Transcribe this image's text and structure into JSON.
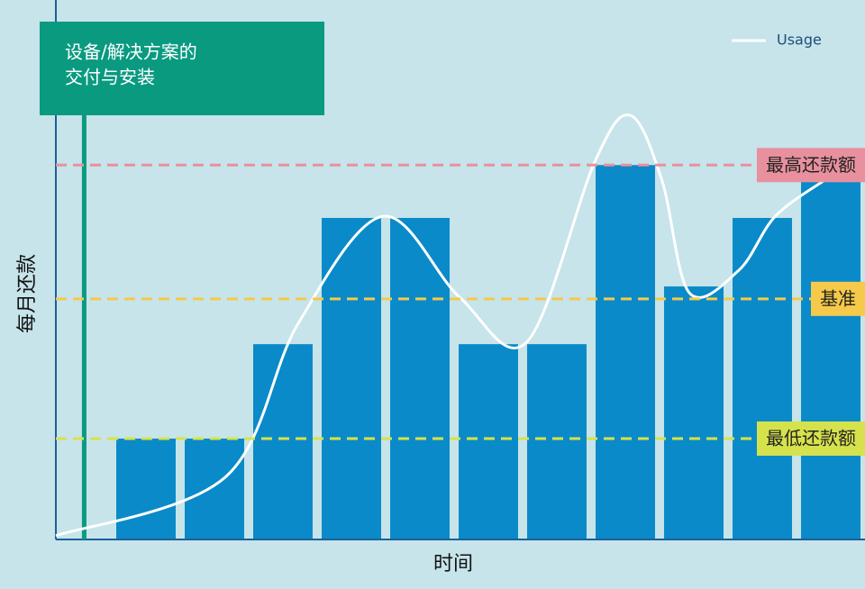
{
  "chart_data": {
    "type": "bar",
    "y_label": "每月还款",
    "x_label": "时间",
    "categories": [
      null,
      null,
      null,
      null,
      null,
      null,
      null,
      null,
      null,
      null,
      null
    ],
    "values": [
      18.7,
      18.7,
      36.2,
      59.6,
      59.6,
      36.2,
      36.2,
      69.4,
      46.9,
      59.6,
      66.3
    ],
    "color": "#0a8ac8",
    "ylim": [
      0,
      100
    ],
    "xlim": [
      0,
      100
    ],
    "lines": [
      {
        "name": "Usage",
        "color": "#ffffff",
        "x": [
          0,
          20.9,
          29.9,
          40.4,
          49.9,
          58.2,
          66.6,
          71,
          74.9,
          78.3,
          84.4,
          88.9,
          95
        ],
        "values": [
          0.7,
          11.5,
          39.9,
          59.9,
          44.9,
          36.6,
          70,
          78.6,
          66.6,
          45.7,
          49.9,
          59.9,
          66.6
        ]
      }
    ],
    "reference_lines": [
      {
        "label": "最高还款额",
        "value": 69.4,
        "color": "#e8909e"
      },
      {
        "label": "基准",
        "value": 44.6,
        "color": "#f5c94a"
      },
      {
        "label": "最低还款额",
        "value": 18.7,
        "color": "#d6e24c"
      }
    ],
    "milestone": {
      "lines": [
        "设备/解决方案的",
        "交付与安装"
      ],
      "x": 3.5,
      "color": "#0a9a80"
    },
    "legend": "top-right"
  }
}
